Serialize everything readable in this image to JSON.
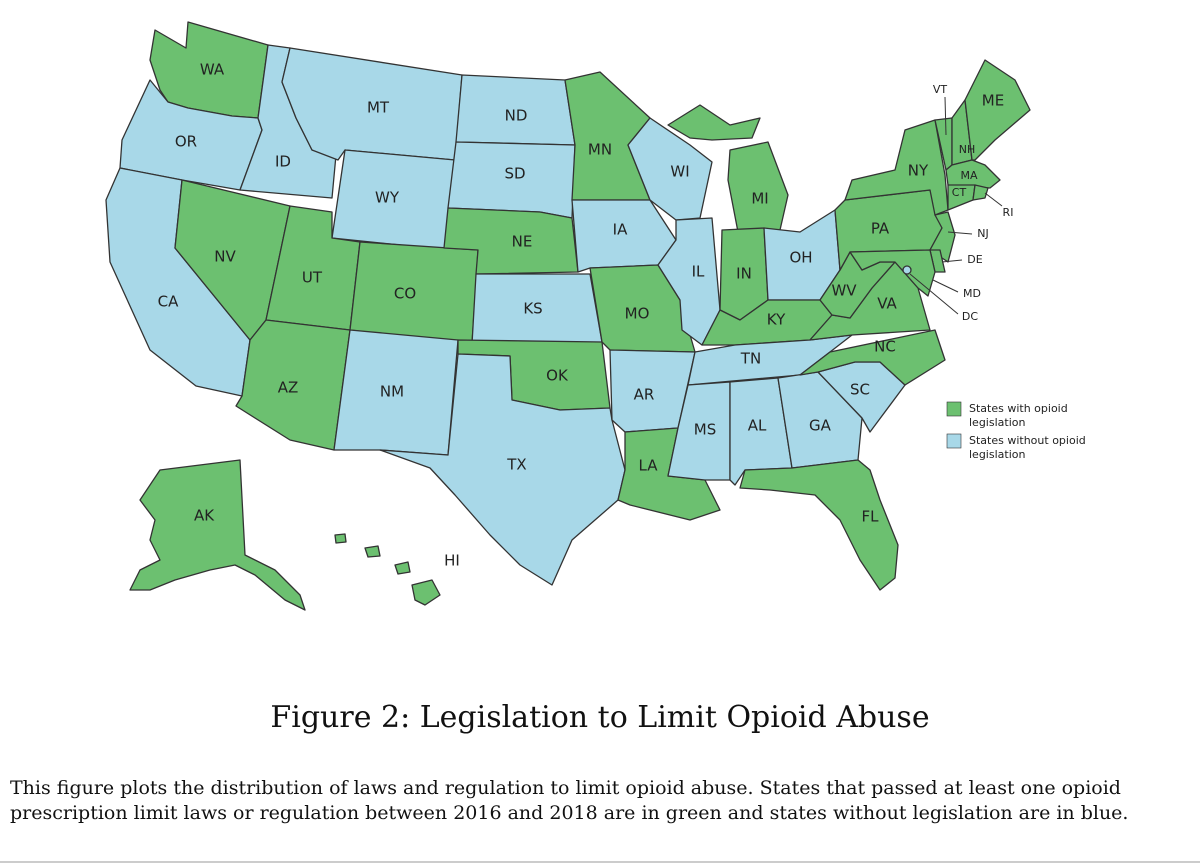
{
  "colors": {
    "with_legislation": "#6cc070",
    "without_legislation": "#a8d8e8",
    "border": "#333333"
  },
  "legend": {
    "with_line1": "States with opioid",
    "with_line2": "legislation",
    "without_line1": "States without opioid",
    "without_line2": "legislation"
  },
  "states": {
    "WA": {
      "label": "WA",
      "legislation": true
    },
    "OR": {
      "label": "OR",
      "legislation": false
    },
    "CA": {
      "label": "CA",
      "legislation": false
    },
    "ID": {
      "label": "ID",
      "legislation": false
    },
    "NV": {
      "label": "NV",
      "legislation": true
    },
    "MT": {
      "label": "MT",
      "legislation": false
    },
    "WY": {
      "label": "WY",
      "legislation": false
    },
    "UT": {
      "label": "UT",
      "legislation": true
    },
    "AZ": {
      "label": "AZ",
      "legislation": true
    },
    "CO": {
      "label": "CO",
      "legislation": true
    },
    "NM": {
      "label": "NM",
      "legislation": false
    },
    "ND": {
      "label": "ND",
      "legislation": false
    },
    "SD": {
      "label": "SD",
      "legislation": false
    },
    "NE": {
      "label": "NE",
      "legislation": true
    },
    "KS": {
      "label": "KS",
      "legislation": false
    },
    "OK": {
      "label": "OK",
      "legislation": true
    },
    "TX": {
      "label": "TX",
      "legislation": false
    },
    "MN": {
      "label": "MN",
      "legislation": true
    },
    "IA": {
      "label": "IA",
      "legislation": false
    },
    "MO": {
      "label": "MO",
      "legislation": true
    },
    "AR": {
      "label": "AR",
      "legislation": false
    },
    "LA": {
      "label": "LA",
      "legislation": true
    },
    "WI": {
      "label": "WI",
      "legislation": false
    },
    "IL": {
      "label": "IL",
      "legislation": false
    },
    "MI": {
      "label": "MI",
      "legislation": true
    },
    "IN": {
      "label": "IN",
      "legislation": true
    },
    "OH": {
      "label": "OH",
      "legislation": false
    },
    "KY": {
      "label": "KY",
      "legislation": true
    },
    "TN": {
      "label": "TN",
      "legislation": false
    },
    "MS": {
      "label": "MS",
      "legislation": false
    },
    "AL": {
      "label": "AL",
      "legislation": false
    },
    "GA": {
      "label": "GA",
      "legislation": false
    },
    "FL": {
      "label": "FL",
      "legislation": true
    },
    "SC": {
      "label": "SC",
      "legislation": false
    },
    "NC": {
      "label": "NC",
      "legislation": true
    },
    "VA": {
      "label": "VA",
      "legislation": true
    },
    "WV": {
      "label": "WV",
      "legislation": true
    },
    "PA": {
      "label": "PA",
      "legislation": true
    },
    "NY": {
      "label": "NY",
      "legislation": true
    },
    "VT": {
      "label": "VT",
      "legislation": true
    },
    "NH": {
      "label": "NH",
      "legislation": true
    },
    "ME": {
      "label": "ME",
      "legislation": true
    },
    "MA": {
      "label": "MA",
      "legislation": true
    },
    "CT": {
      "label": "CT",
      "legislation": true
    },
    "RI": {
      "label": "RI",
      "legislation": true
    },
    "NJ": {
      "label": "NJ",
      "legislation": true
    },
    "DE": {
      "label": "DE",
      "legislation": true
    },
    "MD": {
      "label": "MD",
      "legislation": true
    },
    "DC": {
      "label": "DC",
      "legislation": false
    },
    "AK": {
      "label": "AK",
      "legislation": true
    },
    "HI": {
      "label": "HI",
      "legislation": true
    }
  },
  "caption": {
    "title": "Figure 2: Legislation to Limit Opioid Abuse",
    "body": "This figure plots the distribution of laws and regulation to limit opioid abuse. States that passed at least one opioid prescription limit laws or regulation between 2016 and 2018 are in green and states without legislation are in blue."
  }
}
